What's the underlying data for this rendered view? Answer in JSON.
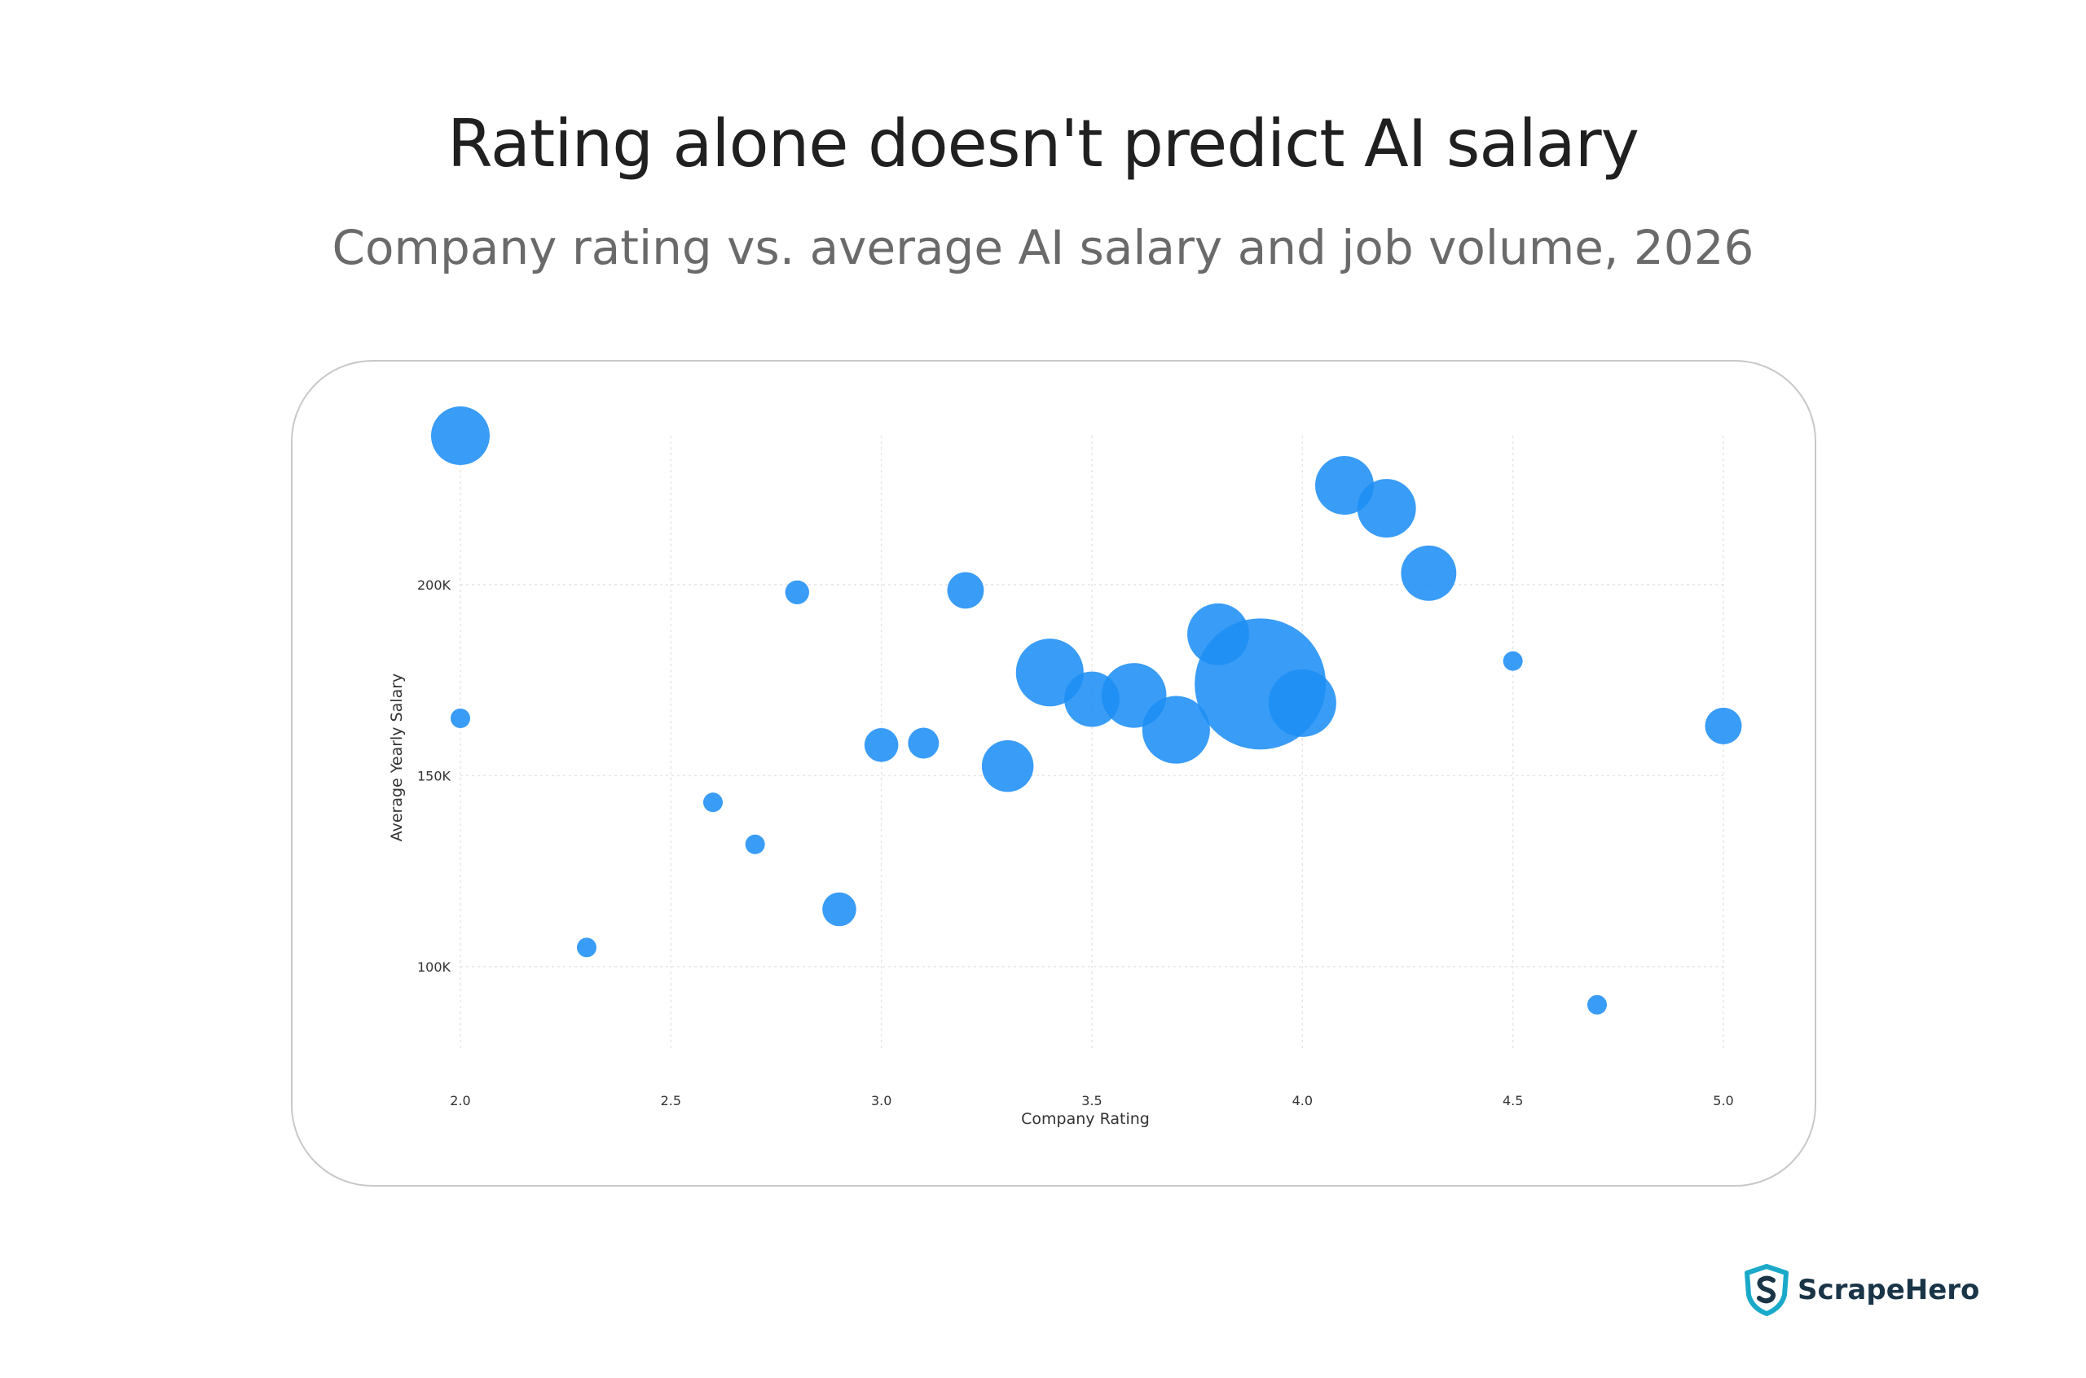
{
  "title": "Rating alone doesn't predict AI salary",
  "subtitle": "Company rating vs. average AI salary and job volume, 2026",
  "brand": {
    "name": "ScrapeHero",
    "logo_icon": "shield-s-logo-icon"
  },
  "colors": {
    "bubble": "#1e8ef5",
    "grid": "#e6e6e6",
    "axis_text": "#333333",
    "brand_teal": "#1aa9c9"
  },
  "chart_data": {
    "type": "scatter",
    "variant": "bubble",
    "title": "",
    "xlabel": "Company Rating",
    "ylabel": "Average Yearly Salary",
    "xlim": [
      2.0,
      5.0
    ],
    "ylim": [
      78000,
      239000
    ],
    "x_ticks": [
      2.0,
      2.5,
      3.0,
      3.5,
      4.0,
      4.5,
      5.0
    ],
    "x_tick_labels": [
      "2.0",
      "2.5",
      "3.0",
      "3.5",
      "4.0",
      "4.5",
      "5.0"
    ],
    "y_ticks": [
      100000,
      150000,
      200000
    ],
    "y_tick_labels": [
      "100K",
      "150K",
      "200K"
    ],
    "grid": true,
    "size_encodes": "job volume (relative)",
    "points": [
      {
        "x": 2.0,
        "y": 239000,
        "size": 9
      },
      {
        "x": 2.0,
        "y": 165000,
        "size": 1
      },
      {
        "x": 2.3,
        "y": 105000,
        "size": 1
      },
      {
        "x": 2.6,
        "y": 143000,
        "size": 1
      },
      {
        "x": 2.7,
        "y": 132000,
        "size": 1
      },
      {
        "x": 2.8,
        "y": 198000,
        "size": 1.5
      },
      {
        "x": 2.9,
        "y": 115000,
        "size": 3
      },
      {
        "x": 3.0,
        "y": 158000,
        "size": 3
      },
      {
        "x": 3.1,
        "y": 158500,
        "size": 2.5
      },
      {
        "x": 3.2,
        "y": 198500,
        "size": 3.5
      },
      {
        "x": 3.3,
        "y": 152500,
        "size": 7
      },
      {
        "x": 3.4,
        "y": 177000,
        "size": 12
      },
      {
        "x": 3.5,
        "y": 170000,
        "size": 8
      },
      {
        "x": 3.6,
        "y": 171000,
        "size": 11
      },
      {
        "x": 3.7,
        "y": 162000,
        "size": 12
      },
      {
        "x": 3.8,
        "y": 187000,
        "size": 10
      },
      {
        "x": 3.9,
        "y": 174000,
        "size": 45
      },
      {
        "x": 4.0,
        "y": 169000,
        "size": 12
      },
      {
        "x": 4.1,
        "y": 226000,
        "size": 9
      },
      {
        "x": 4.2,
        "y": 220000,
        "size": 9
      },
      {
        "x": 4.3,
        "y": 203000,
        "size": 8
      },
      {
        "x": 4.5,
        "y": 180000,
        "size": 1
      },
      {
        "x": 4.7,
        "y": 90000,
        "size": 1
      },
      {
        "x": 5.0,
        "y": 163000,
        "size": 3.5
      }
    ]
  }
}
